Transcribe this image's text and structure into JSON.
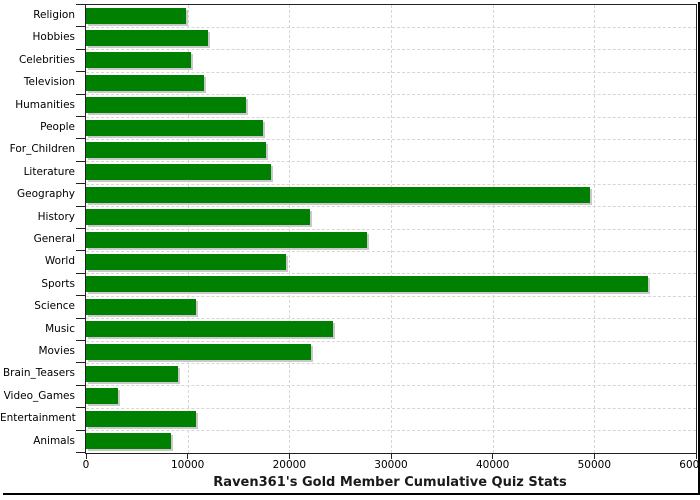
{
  "chart_data": {
    "type": "bar",
    "orientation": "horizontal",
    "title": "Raven361's Gold Member Cumulative Quiz Stats",
    "categories": [
      "Religion",
      "Hobbies",
      "Celebrities",
      "Television",
      "Humanities",
      "People",
      "For_Children",
      "Literature",
      "Geography",
      "History",
      "General",
      "World",
      "Sports",
      "Science",
      "Music",
      "Movies",
      "Brain_Teasers",
      "Video_Games",
      "Entertainment",
      "Animals"
    ],
    "values": [
      9800,
      12000,
      10300,
      11600,
      15700,
      17400,
      17700,
      18200,
      49600,
      22000,
      27600,
      19700,
      55300,
      10800,
      24300,
      22100,
      9000,
      3100,
      10800,
      8400
    ],
    "xlim": [
      0,
      60000
    ],
    "x_ticks": [
      0,
      10000,
      20000,
      30000,
      40000,
      50000,
      60000
    ],
    "x_tick_labels": [
      "0",
      "10000",
      "20000",
      "30000",
      "40000",
      "50000",
      "60000"
    ],
    "grid": "dashed, horizontal at category boundaries and vertical at x ticks",
    "legend": "none",
    "colors": {
      "bar": "#008000",
      "bar_shadow": "#c9c9c9",
      "gridline": "#d6d6d6",
      "axis": "#222222",
      "text": "#000000",
      "background": "#ffffff",
      "image_border": "#000000"
    }
  }
}
